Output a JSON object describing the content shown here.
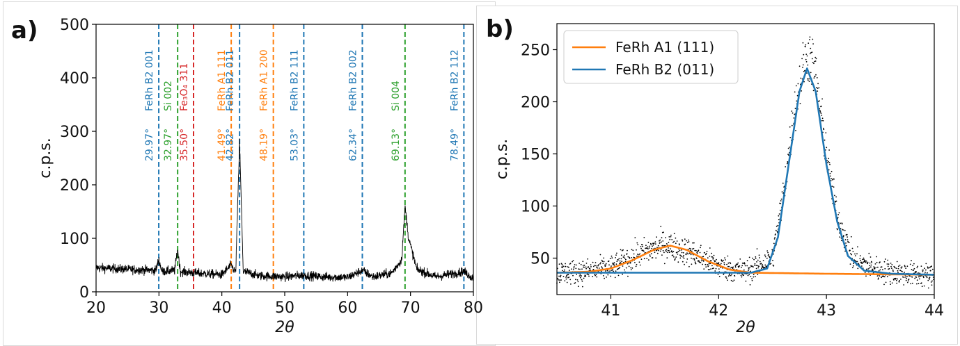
{
  "panels": {
    "a_label": "a)",
    "b_label": "b)"
  },
  "chart_data": [
    {
      "type": "line",
      "panel": "a)",
      "xlabel": "2θ",
      "ylabel": "c.p.s.",
      "xlim": [
        20,
        80
      ],
      "ylim": [
        0,
        500
      ],
      "xticks": [
        20,
        30,
        40,
        50,
        60,
        70,
        80
      ],
      "yticks": [
        0,
        100,
        200,
        300,
        400,
        500
      ],
      "grid": false,
      "colors": {
        "data": "#000000",
        "FeRh B2": "#1f77b4",
        "Si": "#2ca02c",
        "Fe3O4": "#d62728",
        "FeRh A1": "#ff7f0e"
      },
      "reference_lines": [
        {
          "x": 29.97,
          "label": "FeRh B2 001",
          "angle_label": "29.97°",
          "color": "#1f77b4"
        },
        {
          "x": 32.97,
          "label": "Si 002",
          "angle_label": "32.97°",
          "color": "#2ca02c"
        },
        {
          "x": 35.5,
          "label": "Fe₃O₄ 311",
          "angle_label": "35.50°",
          "color": "#d62728"
        },
        {
          "x": 41.49,
          "label": "FeRh A1 111",
          "angle_label": "41.49°",
          "color": "#ff7f0e"
        },
        {
          "x": 42.82,
          "label": "FeRh B2 011",
          "angle_label": "42.82°",
          "color": "#1f77b4"
        },
        {
          "x": 48.19,
          "label": "FeRh A1 200",
          "angle_label": "48.19°",
          "color": "#ff7f0e"
        },
        {
          "x": 53.03,
          "label": "FeRh B2 111",
          "angle_label": "53.03°",
          "color": "#1f77b4"
        },
        {
          "x": 62.34,
          "label": "FeRh B2 002",
          "angle_label": "62.34°",
          "color": "#1f77b4"
        },
        {
          "x": 69.13,
          "label": "Si 004",
          "angle_label": "69.13°",
          "color": "#2ca02c"
        },
        {
          "x": 78.49,
          "label": "FeRh B2 112",
          "angle_label": "78.49°",
          "color": "#1f77b4"
        }
      ],
      "series": [
        {
          "x": [
            20,
            25,
            29.5,
            29.97,
            30.5,
            32.5,
            32.97,
            33.4,
            36,
            40,
            41.49,
            42.2,
            42.82,
            43.4,
            46,
            50,
            53.03,
            56,
            60,
            62.34,
            64,
            67,
            68.6,
            69.13,
            69.7,
            71,
            74,
            78.49,
            80
          ],
          "y": [
            45,
            42,
            40,
            60,
            38,
            40,
            80,
            38,
            35,
            32,
            50,
            35,
            280,
            38,
            30,
            28,
            31,
            28,
            27,
            40,
            28,
            35,
            60,
            160,
            100,
            42,
            28,
            38,
            25
          ]
        }
      ]
    },
    {
      "type": "scatter",
      "panel": "b)",
      "xlabel": "2θ",
      "ylabel": "c.p.s.",
      "xlim": [
        40.5,
        44
      ],
      "ylim": [
        15,
        275
      ],
      "xticks": [
        41,
        42,
        43,
        44
      ],
      "yticks": [
        50,
        100,
        150,
        200,
        250
      ],
      "grid": false,
      "legend_position": "top-left",
      "series": [
        {
          "name": "FeRh A1 (111)",
          "kind": "fit",
          "color": "#ff7f0e",
          "x": [
            40.5,
            40.8,
            41.0,
            41.2,
            41.4,
            41.55,
            41.7,
            41.9,
            42.1,
            42.3,
            43.0,
            44.0
          ],
          "y": [
            36,
            37,
            40,
            48,
            58,
            62,
            58,
            47,
            39,
            36,
            35,
            34
          ]
        },
        {
          "name": "FeRh B2 (011)",
          "kind": "fit",
          "color": "#1f77b4",
          "x": [
            40.5,
            42.0,
            42.3,
            42.45,
            42.55,
            42.65,
            42.75,
            42.82,
            42.9,
            43.0,
            43.1,
            43.2,
            43.35,
            43.6,
            44.0
          ],
          "y": [
            36,
            36,
            36,
            40,
            70,
            140,
            210,
            232,
            210,
            140,
            85,
            52,
            38,
            35,
            34
          ]
        },
        {
          "name": "",
          "kind": "data",
          "color": "#000000",
          "x": [
            40.5,
            40.75,
            41.0,
            41.25,
            41.5,
            41.75,
            42.0,
            42.25,
            42.5,
            42.6,
            42.7,
            42.8,
            42.85,
            42.9,
            43.0,
            43.1,
            43.25,
            43.5,
            43.75,
            44.0
          ],
          "y": [
            36,
            37,
            40,
            53,
            63,
            55,
            42,
            37,
            50,
            110,
            190,
            240,
            245,
            225,
            150,
            90,
            48,
            38,
            35,
            33
          ]
        }
      ]
    }
  ]
}
